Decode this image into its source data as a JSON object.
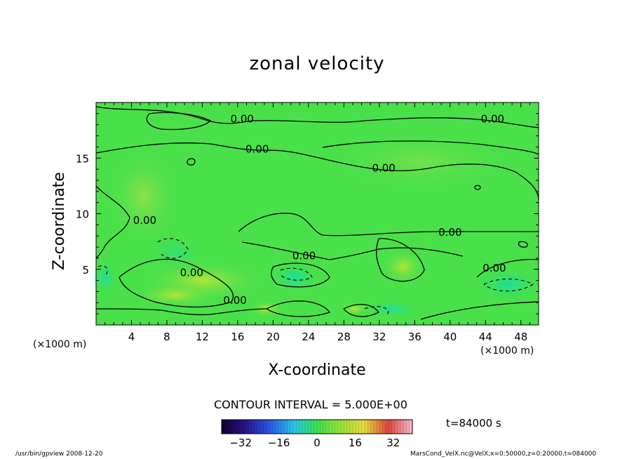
{
  "chart_data": {
    "type": "heatmap",
    "title": "zonal velocity",
    "xlabel": "X-coordinate",
    "ylabel": "Z-coordinate",
    "x_unit": "(×1000 m)",
    "y_unit": "(×1000 m)",
    "xlim": [
      0,
      50
    ],
    "ylim": [
      0,
      20
    ],
    "x_ticks": [
      4,
      8,
      12,
      16,
      20,
      24,
      28,
      32,
      36,
      40,
      44,
      48
    ],
    "y_ticks": [
      5,
      10,
      15
    ],
    "contour_interval": "CONTOUR INTERVAL = 5.000E+00",
    "contour_labels": [
      {
        "text": "0.00",
        "x": 16.5,
        "y": 18.2
      },
      {
        "text": "0.00",
        "x": 44.8,
        "y": 18.2
      },
      {
        "text": "0.00",
        "x": 18.2,
        "y": 15.5
      },
      {
        "text": "0.00",
        "x": 32.5,
        "y": 13.8
      },
      {
        "text": "0.00",
        "x": 5.5,
        "y": 9.1
      },
      {
        "text": "0.00",
        "x": 40.0,
        "y": 8.0
      },
      {
        "text": "0.00",
        "x": 23.5,
        "y": 5.9
      },
      {
        "text": "0.00",
        "x": 10.8,
        "y": 4.4
      },
      {
        "text": "0.00",
        "x": 45.0,
        "y": 4.8
      },
      {
        "text": "0.00",
        "x": 15.7,
        "y": 1.9
      }
    ],
    "colorbar": {
      "range": [
        -40,
        40
      ],
      "ticks": [
        -32,
        -16,
        0,
        16,
        32
      ]
    },
    "time": "t=84000 s"
  },
  "footer": {
    "left": "/usr/bin/gpview   2008-12-20",
    "right": "MarsCond_VelX.nc@VelX,x=0:50000,z=0:20000,t=084000"
  }
}
